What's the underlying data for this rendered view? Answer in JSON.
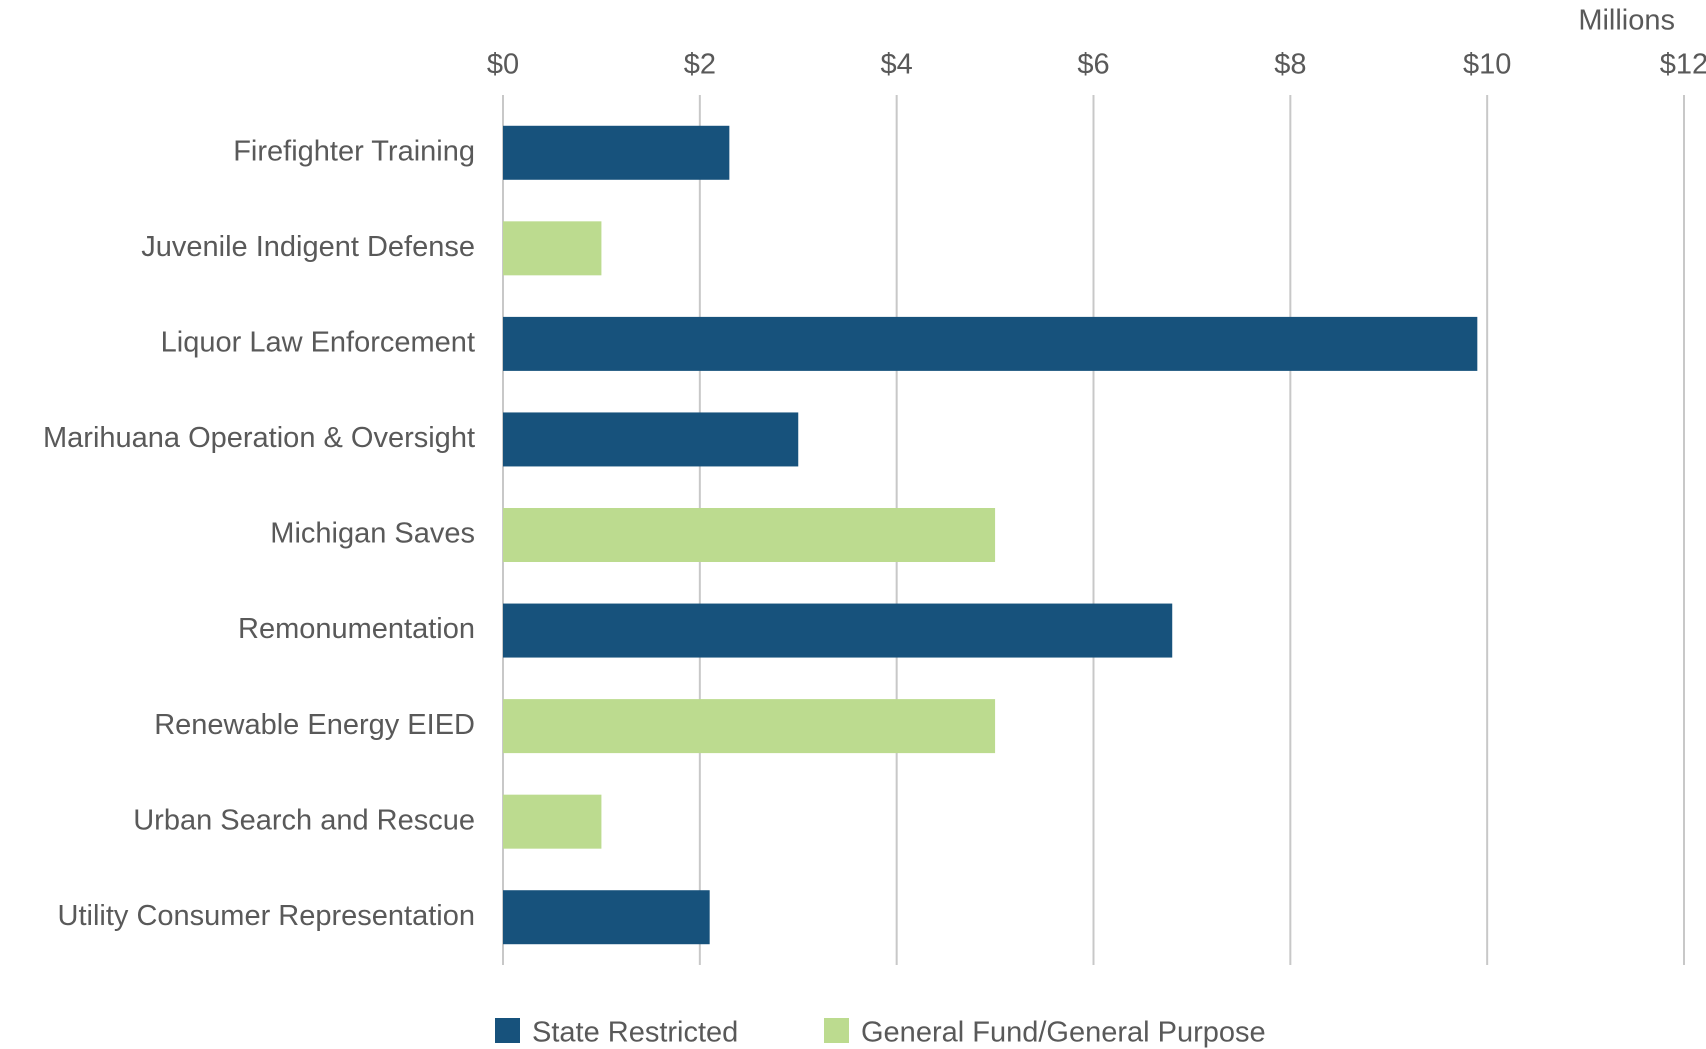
{
  "chart_data": {
    "type": "bar",
    "orientation": "horizontal",
    "axis_label": "Millions",
    "categories": [
      "Firefighter Training",
      "Juvenile Indigent Defense",
      "Liquor Law Enforcement",
      "Marihuana Operation & Oversight",
      "Michigan Saves",
      "Remonumentation",
      "Renewable Energy EIED",
      "Urban Search and Rescue",
      "Utility Consumer Representation"
    ],
    "series": [
      {
        "name": "State Restricted",
        "color": "#17527c",
        "values": [
          2.3,
          null,
          9.9,
          3.0,
          null,
          6.8,
          null,
          null,
          2.1
        ]
      },
      {
        "name": "General Fund/General Purpose",
        "color": "#bcdb8f",
        "values": [
          null,
          1.0,
          null,
          null,
          5.0,
          null,
          5.0,
          1.0,
          null
        ]
      }
    ],
    "xlim": [
      0,
      12
    ],
    "xticks": [
      {
        "value": 0,
        "label": "$0"
      },
      {
        "value": 2,
        "label": "$2"
      },
      {
        "value": 4,
        "label": "$4"
      },
      {
        "value": 6,
        "label": "$6"
      },
      {
        "value": 8,
        "label": "$8"
      },
      {
        "value": 10,
        "label": "$10"
      },
      {
        "value": 12,
        "label": "$12"
      }
    ],
    "grid": true,
    "legend": "bottom"
  }
}
